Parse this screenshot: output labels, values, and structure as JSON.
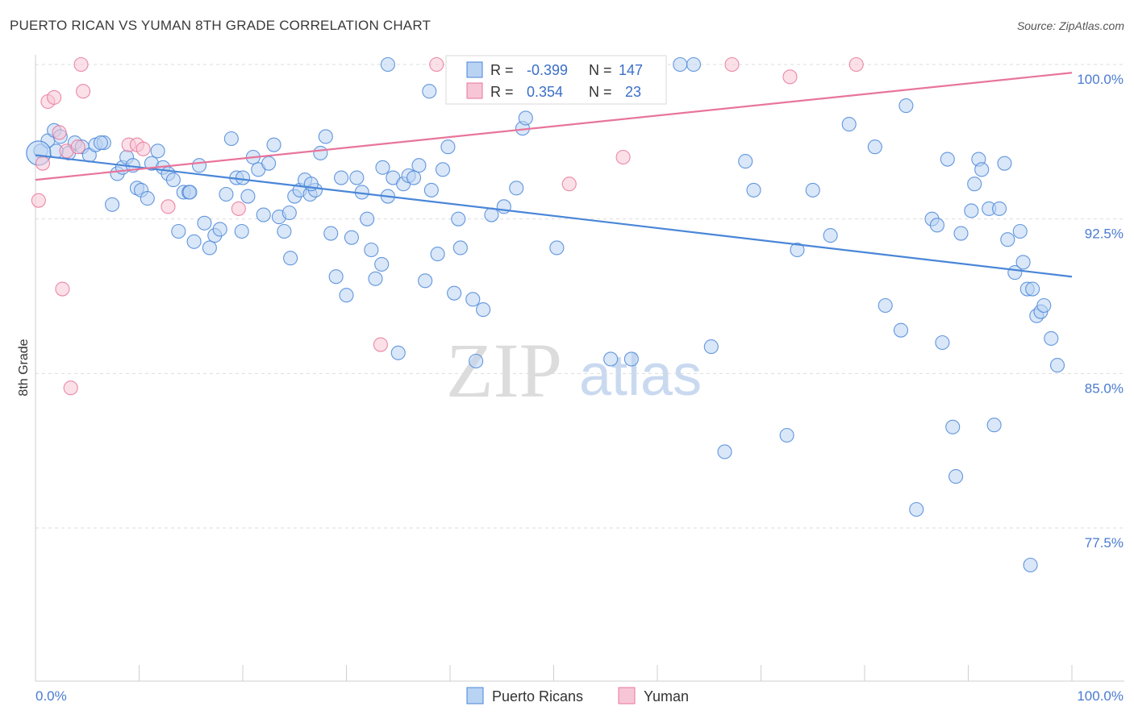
{
  "title": "PUERTO RICAN VS YUMAN 8TH GRADE CORRELATION CHART",
  "source": "Source: ZipAtlas.com",
  "watermark": {
    "zip": "ZIP",
    "atlas": "atlas"
  },
  "colors": {
    "blue": "#4a86d8",
    "pink": "#e8759b",
    "blue_fill": "#b9d3f3",
    "pink_fill": "#f7c6d6"
  },
  "legend_box": {
    "rows": [
      {
        "r_label": "R =",
        "r_value": "-0.399",
        "n_label": "N =",
        "n_value": "147"
      },
      {
        "r_label": "R =",
        "r_value": "0.354",
        "n_label": "N =",
        "n_value": "23"
      }
    ]
  },
  "bottom_legend": {
    "items": [
      "Puerto Ricans",
      "Yuman"
    ]
  },
  "chart_data": {
    "type": "scatter",
    "title": "PUERTO RICAN VS YUMAN 8TH GRADE CORRELATION CHART",
    "xlabel": "",
    "ylabel": "8th Grade",
    "xlim": [
      0,
      100
    ],
    "ylim": [
      71.5,
      101.3
    ],
    "x_tick_labels": [
      "0.0%",
      "100.0%"
    ],
    "y_ticks": [
      100.0,
      92.5,
      85.0,
      77.5
    ],
    "y_tick_labels": [
      "100.0%",
      "92.5%",
      "85.0%",
      "77.5%"
    ],
    "grid": "horizontal dashed",
    "legend_placement": "bottom-center",
    "series": [
      {
        "name": "Puerto Ricans",
        "color": "#4a86d8",
        "trend": {
          "x": [
            0,
            100
          ],
          "y": [
            95.6,
            89.7
          ]
        },
        "points": [
          [
            0.5,
            95.8
          ],
          [
            1.2,
            96.3
          ],
          [
            1.8,
            96.8
          ],
          [
            2.4,
            96.5
          ],
          [
            3.2,
            95.7
          ],
          [
            3.8,
            96.2
          ],
          [
            4.5,
            96.0
          ],
          [
            5.2,
            95.6
          ],
          [
            5.8,
            96.1
          ],
          [
            6.6,
            96.2
          ],
          [
            7.4,
            93.2
          ],
          [
            7.9,
            94.7
          ],
          [
            8.4,
            95.0
          ],
          [
            8.8,
            95.5
          ],
          [
            9.4,
            95.1
          ],
          [
            9.8,
            94.0
          ],
          [
            10.2,
            93.9
          ],
          [
            10.8,
            93.5
          ],
          [
            11.2,
            95.2
          ],
          [
            11.8,
            95.8
          ],
          [
            12.3,
            95.0
          ],
          [
            12.8,
            94.7
          ],
          [
            13.3,
            94.4
          ],
          [
            13.8,
            91.9
          ],
          [
            14.3,
            93.8
          ],
          [
            14.8,
            93.8
          ],
          [
            15.3,
            91.4
          ],
          [
            15.8,
            95.1
          ],
          [
            16.3,
            92.3
          ],
          [
            16.8,
            91.1
          ],
          [
            17.3,
            91.7
          ],
          [
            17.8,
            92.0
          ],
          [
            18.4,
            93.7
          ],
          [
            18.9,
            96.4
          ],
          [
            19.4,
            94.5
          ],
          [
            19.9,
            91.9
          ],
          [
            20.5,
            93.6
          ],
          [
            21.0,
            95.5
          ],
          [
            21.5,
            94.9
          ],
          [
            22.0,
            92.7
          ],
          [
            22.5,
            95.2
          ],
          [
            23.0,
            96.1
          ],
          [
            23.5,
            92.6
          ],
          [
            24.0,
            91.9
          ],
          [
            24.5,
            92.8
          ],
          [
            25.0,
            93.6
          ],
          [
            25.5,
            93.9
          ],
          [
            26.0,
            94.4
          ],
          [
            26.5,
            93.7
          ],
          [
            27.0,
            93.9
          ],
          [
            27.5,
            95.7
          ],
          [
            28.0,
            96.5
          ],
          [
            28.5,
            91.8
          ],
          [
            29.0,
            89.7
          ],
          [
            29.5,
            94.5
          ],
          [
            30.0,
            88.8
          ],
          [
            30.5,
            91.6
          ],
          [
            31.0,
            94.5
          ],
          [
            31.5,
            93.8
          ],
          [
            32.0,
            92.5
          ],
          [
            32.4,
            91.0
          ],
          [
            32.8,
            89.6
          ],
          [
            33.4,
            90.3
          ],
          [
            34.0,
            93.6
          ],
          [
            34.5,
            94.5
          ],
          [
            35.0,
            86.0
          ],
          [
            35.5,
            94.2
          ],
          [
            36.0,
            94.6
          ],
          [
            37.0,
            95.1
          ],
          [
            37.6,
            89.5
          ],
          [
            38.2,
            93.9
          ],
          [
            38.8,
            90.8
          ],
          [
            39.3,
            94.9
          ],
          [
            39.8,
            96.0
          ],
          [
            40.4,
            88.9
          ],
          [
            41.0,
            91.1
          ],
          [
            42.2,
            88.6
          ],
          [
            42.5,
            85.6
          ],
          [
            43.2,
            88.1
          ],
          [
            44.0,
            92.7
          ],
          [
            45.2,
            93.1
          ],
          [
            46.4,
            94.0
          ],
          [
            47.0,
            96.9
          ],
          [
            47.3,
            97.4
          ],
          [
            50.3,
            91.1
          ],
          [
            55.5,
            85.7
          ],
          [
            57.5,
            85.7
          ],
          [
            60.0,
            100.0
          ],
          [
            63.5,
            100.0
          ],
          [
            65.2,
            86.3
          ],
          [
            66.5,
            81.2
          ],
          [
            68.5,
            95.3
          ],
          [
            69.3,
            93.9
          ],
          [
            72.5,
            82.0
          ],
          [
            73.5,
            91.0
          ],
          [
            75.0,
            93.9
          ],
          [
            76.7,
            91.7
          ],
          [
            78.5,
            97.1
          ],
          [
            81.0,
            96.0
          ],
          [
            82.0,
            88.3
          ],
          [
            83.5,
            87.1
          ],
          [
            84.0,
            98.0
          ],
          [
            85.0,
            78.4
          ],
          [
            86.5,
            92.5
          ],
          [
            87.0,
            92.2
          ],
          [
            87.5,
            86.5
          ],
          [
            88.0,
            95.4
          ],
          [
            88.5,
            82.4
          ],
          [
            88.8,
            80.0
          ],
          [
            89.3,
            91.8
          ],
          [
            90.3,
            92.9
          ],
          [
            90.6,
            94.2
          ],
          [
            91.0,
            95.4
          ],
          [
            91.3,
            94.9
          ],
          [
            92.0,
            93.0
          ],
          [
            92.5,
            82.5
          ],
          [
            93.0,
            93.0
          ],
          [
            93.5,
            95.2
          ],
          [
            93.8,
            91.5
          ],
          [
            94.5,
            89.9
          ],
          [
            95.0,
            91.9
          ],
          [
            95.3,
            90.4
          ],
          [
            95.7,
            89.1
          ],
          [
            96.2,
            89.1
          ],
          [
            96.6,
            87.8
          ],
          [
            97.0,
            88.0
          ],
          [
            97.3,
            88.3
          ],
          [
            98.0,
            86.7
          ],
          [
            98.6,
            85.4
          ],
          [
            96.0,
            75.7
          ],
          [
            20.0,
            94.5
          ],
          [
            24.6,
            90.6
          ],
          [
            26.6,
            94.2
          ],
          [
            33.5,
            95.0
          ],
          [
            43.0,
            98.8
          ],
          [
            46.0,
            100.0
          ],
          [
            48.7,
            100.0
          ],
          [
            56.0,
            100.0
          ],
          [
            62.2,
            100.0
          ],
          [
            34.0,
            100.0
          ],
          [
            38.0,
            98.7
          ],
          [
            2.0,
            95.8
          ],
          [
            6.3,
            96.2
          ],
          [
            14.9,
            93.8
          ],
          [
            36.5,
            94.5
          ],
          [
            40.8,
            92.5
          ],
          [
            51.8,
            100.0
          ]
        ]
      },
      {
        "name": "Yuman",
        "color": "#e8759b",
        "trend": {
          "x": [
            0,
            100
          ],
          "y": [
            94.4,
            99.6
          ]
        },
        "points": [
          [
            0.3,
            93.4
          ],
          [
            0.7,
            95.2
          ],
          [
            1.2,
            98.2
          ],
          [
            1.8,
            98.4
          ],
          [
            2.3,
            96.7
          ],
          [
            2.6,
            89.1
          ],
          [
            3.0,
            95.8
          ],
          [
            3.4,
            84.3
          ],
          [
            4.1,
            96.0
          ],
          [
            4.4,
            100.0
          ],
          [
            4.6,
            98.7
          ],
          [
            9.0,
            96.1
          ],
          [
            9.8,
            96.1
          ],
          [
            10.4,
            95.9
          ],
          [
            12.8,
            93.1
          ],
          [
            19.6,
            93.0
          ],
          [
            33.3,
            86.4
          ],
          [
            38.7,
            100.0
          ],
          [
            51.5,
            94.2
          ],
          [
            56.7,
            95.5
          ],
          [
            67.2,
            100.0
          ],
          [
            72.8,
            99.4
          ],
          [
            79.2,
            100.0
          ]
        ]
      }
    ]
  }
}
